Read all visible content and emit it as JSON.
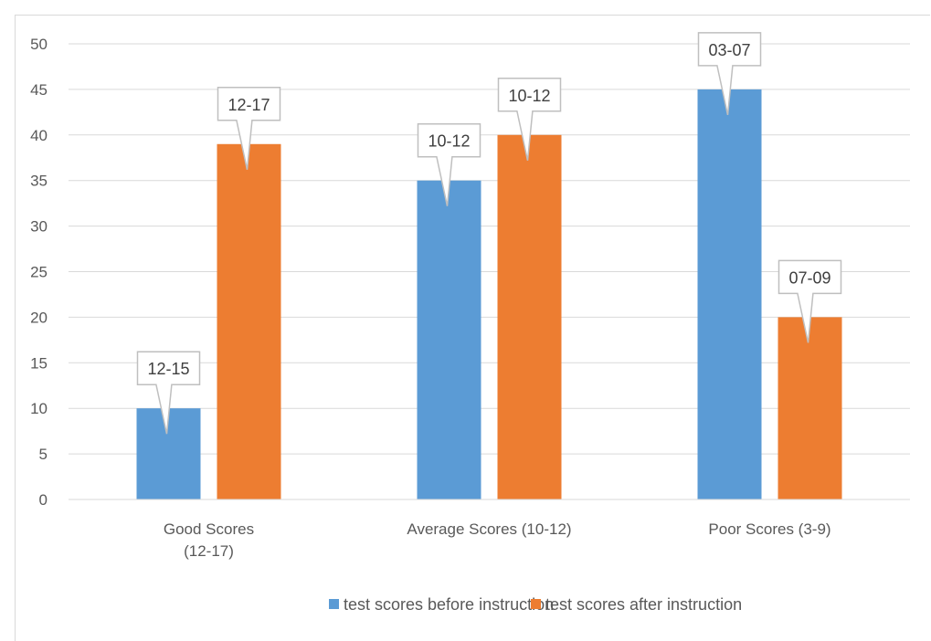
{
  "chart_data": {
    "type": "bar",
    "categories": [
      [
        "Good Scores",
        "(12-17)"
      ],
      [
        "Average Scores (10-12)"
      ],
      [
        "Poor Scores (3-9)"
      ]
    ],
    "series": [
      {
        "name": "test scores before instruction",
        "color": "#5b9bd5",
        "values": [
          10,
          35,
          45
        ],
        "data_labels": [
          "12-15",
          "10-12",
          "03-07"
        ]
      },
      {
        "name": "test scores after instruction",
        "color": "#ed7d31",
        "values": [
          39,
          40,
          20
        ],
        "data_labels": [
          "12-17",
          "10-12",
          "07-09"
        ]
      }
    ],
    "ylim": [
      0,
      50
    ],
    "yticks": [
      0,
      5,
      10,
      15,
      20,
      25,
      30,
      35,
      40,
      45,
      50
    ],
    "grid": true,
    "legend": "bottom"
  }
}
